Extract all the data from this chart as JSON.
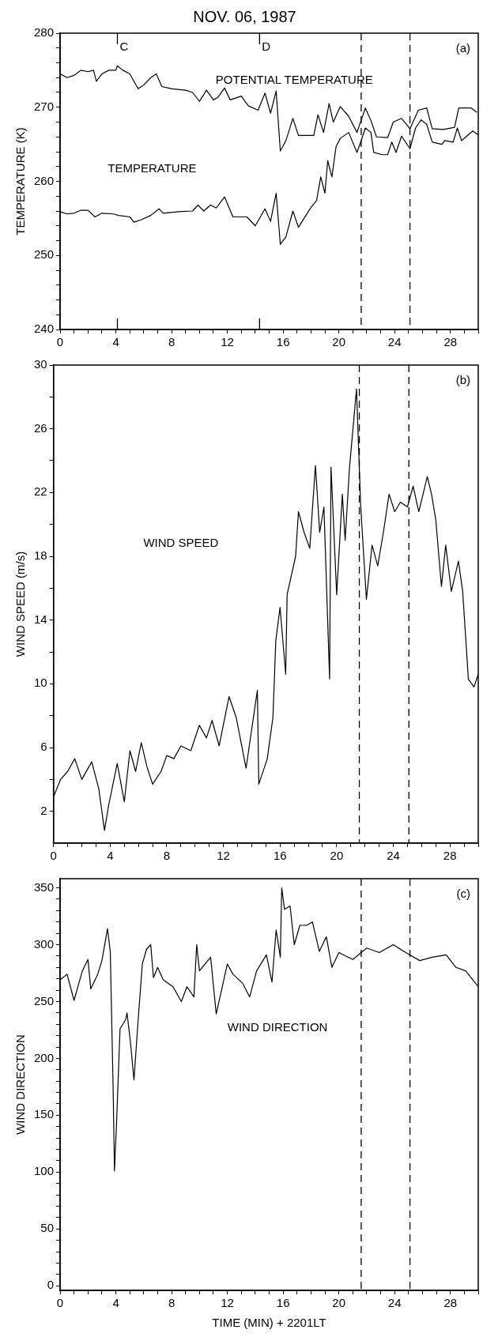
{
  "chart_data": [
    {
      "type": "line",
      "title": "NOV. 06, 1987",
      "ylabel": "TEMPERATURE (K)",
      "xlim": [
        0,
        30
      ],
      "ylim": [
        240,
        280
      ],
      "xticks": [
        0,
        {
          "value": 1,
          "label": null
        },
        {
          "value": 2,
          "label": null
        },
        {
          "value": 3,
          "label": null
        },
        4,
        {
          "value": 5,
          "label": null
        },
        {
          "value": 6,
          "label": null
        },
        {
          "value": 7,
          "label": null
        },
        8,
        {
          "value": 9,
          "label": null
        },
        {
          "value": 10,
          "label": null
        },
        {
          "value": 11,
          "label": null
        },
        12,
        {
          "value": 13,
          "label": null
        },
        {
          "value": 14,
          "label": null
        },
        {
          "value": 15,
          "label": null
        },
        16,
        {
          "value": 17,
          "label": null
        },
        {
          "value": 18,
          "label": null
        },
        {
          "value": 19,
          "label": null
        },
        20,
        {
          "value": 21,
          "label": null
        },
        {
          "value": 22,
          "label": null
        },
        {
          "value": 23,
          "label": null
        },
        24,
        {
          "value": 25,
          "label": null
        },
        {
          "value": 26,
          "label": null
        },
        {
          "value": 27,
          "label": null
        },
        28,
        {
          "value": 29,
          "label": null
        },
        {
          "value": 30,
          "label": null
        }
      ],
      "yticks": [
        240,
        {
          "value": 242,
          "label": null
        },
        {
          "value": 244,
          "label": null
        },
        {
          "value": 246,
          "label": null
        },
        {
          "value": 248,
          "label": null
        },
        250,
        {
          "value": 252,
          "label": null
        },
        {
          "value": 254,
          "label": null
        },
        {
          "value": 256,
          "label": null
        },
        {
          "value": 258,
          "label": null
        },
        260,
        {
          "value": 262,
          "label": null
        },
        {
          "value": 264,
          "label": null
        },
        {
          "value": 266,
          "label": null
        },
        {
          "value": 268,
          "label": null
        },
        270,
        {
          "value": 272,
          "label": null
        },
        {
          "value": 274,
          "label": null
        },
        {
          "value": 276,
          "label": null
        },
        {
          "value": 278,
          "label": null
        },
        280
      ],
      "series": [
        {
          "name": "POTENTIAL TEMPERATURE",
          "color": "#000000",
          "x": [
            0,
            0.5,
            1,
            1.5,
            2,
            2.4,
            2.6,
            3,
            3.5,
            4,
            4.1,
            4.5,
            5,
            5.3,
            5.6,
            6,
            6.5,
            6.9,
            7.3,
            8,
            9,
            9.5,
            10,
            10.5,
            11,
            11.3,
            11.8,
            12.2,
            13,
            13.5,
            14.2,
            14.7,
            15.1,
            15.5,
            15.8,
            16.2,
            16.7,
            17.1,
            18.2,
            18.5,
            18.9,
            19.3,
            19.6,
            20.1,
            20.7,
            21.3,
            21.9,
            22.3,
            22.7,
            23.5,
            23.9,
            24.5,
            25.1,
            25.7,
            26.3,
            26.7,
            27.5,
            28.3,
            28.6,
            29.5,
            29.9
          ],
          "values": [
            274.5,
            274.0,
            274.3,
            275.0,
            274.8,
            275.0,
            273.5,
            274.5,
            275.0,
            275.0,
            275.6,
            275.0,
            274.5,
            273.5,
            272.5,
            273.0,
            274.0,
            274.5,
            272.8,
            272.5,
            272.3,
            272.0,
            270.8,
            272.3,
            271.0,
            271.3,
            272.6,
            271.0,
            271.5,
            270.2,
            269.6,
            271.9,
            269.2,
            272.2,
            264.1,
            265.5,
            268.5,
            266.2,
            266.2,
            269.0,
            266.6,
            270.5,
            268.0,
            270.1,
            268.8,
            266.6,
            269.9,
            268.2,
            266.0,
            265.9,
            268.0,
            268.5,
            267.1,
            269.6,
            269.9,
            267.1,
            267.0,
            267.3,
            269.9,
            269.9,
            269.3
          ]
        },
        {
          "name": "TEMPERATURE",
          "color": "#000000",
          "x": [
            0,
            0.5,
            1,
            1.5,
            2,
            2.5,
            3,
            3.8,
            4.2,
            5,
            5.3,
            5.8,
            6.5,
            7.1,
            7.4,
            8.5,
            9.5,
            9.9,
            10.3,
            10.8,
            11.2,
            11.8,
            12.4,
            13.4,
            14.0,
            14.7,
            15.1,
            15.5,
            15.8,
            16.2,
            16.7,
            17.1,
            18.0,
            18.4,
            18.7,
            19.0,
            19.2,
            19.5,
            19.8,
            20.1,
            20.7,
            21.3,
            21.6,
            21.9,
            22.3,
            22.5,
            23.1,
            23.5,
            23.8,
            24.1,
            24.5,
            25.1,
            25.5,
            25.9,
            26.3,
            26.7,
            27.4,
            27.6,
            28.2,
            28.5,
            28.8,
            29.6,
            30
          ],
          "values": [
            255.9,
            255.6,
            255.7,
            256.1,
            256.1,
            255.2,
            255.7,
            255.6,
            255.4,
            255.2,
            254.5,
            254.8,
            255.4,
            256.3,
            255.7,
            255.9,
            256.0,
            256.8,
            256.0,
            256.8,
            256.4,
            257.9,
            255.2,
            255.2,
            254.0,
            256.3,
            254.6,
            258.4,
            251.5,
            252.5,
            256.0,
            253.8,
            256.5,
            257.4,
            260.6,
            258.4,
            262.8,
            260.6,
            264.7,
            265.8,
            266.6,
            263.9,
            265.5,
            267.2,
            266.6,
            263.9,
            263.6,
            263.6,
            265.3,
            263.9,
            266.1,
            264.4,
            267.2,
            268.3,
            267.7,
            265.3,
            265.0,
            265.5,
            265.3,
            267.2,
            265.5,
            266.8,
            266.3
          ]
        }
      ],
      "ref_lines": [
        {
          "axis": "x",
          "value": 21.6,
          "line_style": "dashed"
        },
        {
          "axis": "x",
          "value": 25.1,
          "line_style": "dashed"
        }
      ],
      "annotations": [
        "(a)",
        "C",
        "D"
      ],
      "marker": "none",
      "line_style": "solid"
    },
    {
      "type": "line",
      "ylabel": "WIND SPEED (m/s)",
      "xlim": [
        0,
        30
      ],
      "ylim": [
        0,
        30
      ],
      "xticks": [
        0,
        {
          "value": 1,
          "label": null
        },
        {
          "value": 2,
          "label": null
        },
        {
          "value": 3,
          "label": null
        },
        4,
        {
          "value": 5,
          "label": null
        },
        {
          "value": 6,
          "label": null
        },
        {
          "value": 7,
          "label": null
        },
        8,
        {
          "value": 9,
          "label": null
        },
        {
          "value": 10,
          "label": null
        },
        {
          "value": 11,
          "label": null
        },
        12,
        {
          "value": 13,
          "label": null
        },
        {
          "value": 14,
          "label": null
        },
        {
          "value": 15,
          "label": null
        },
        16,
        {
          "value": 17,
          "label": null
        },
        {
          "value": 18,
          "label": null
        },
        {
          "value": 19,
          "label": null
        },
        20,
        {
          "value": 21,
          "label": null
        },
        {
          "value": 22,
          "label": null
        },
        {
          "value": 23,
          "label": null
        },
        24,
        {
          "value": 25,
          "label": null
        },
        {
          "value": 26,
          "label": null
        },
        {
          "value": 27,
          "label": null
        },
        28,
        {
          "value": 29,
          "label": null
        },
        {
          "value": 30,
          "label": null
        }
      ],
      "yticks": [
        2,
        {
          "value": 4,
          "label": null
        },
        6,
        {
          "value": 8,
          "label": null
        },
        10,
        {
          "value": 12,
          "label": null
        },
        14,
        {
          "value": 16,
          "label": null
        },
        18,
        {
          "value": 20,
          "label": null
        },
        22,
        {
          "value": 24,
          "label": null
        },
        26,
        {
          "value": 28,
          "label": null
        },
        30
      ],
      "series": [
        {
          "name": "WIND SPEED",
          "color": "#000000",
          "x": [
            0,
            0.5,
            1,
            1.5,
            2,
            2.7,
            3.2,
            3.6,
            3.9,
            4.5,
            5,
            5.4,
            5.8,
            6.2,
            6.6,
            7,
            7.6,
            8,
            8.5,
            9,
            9.7,
            10.3,
            10.8,
            11.2,
            11.7,
            12.4,
            12.9,
            13.6,
            14.4,
            14.5,
            15.1,
            15.5,
            15.7,
            16.0,
            16.4,
            16.5,
            17.1,
            17.3,
            17.7,
            18.1,
            18.5,
            18.8,
            19.1,
            19.5,
            19.6,
            20.0,
            20.4,
            20.6,
            20.9,
            21.4,
            21.7,
            22.1,
            22.5,
            22.9,
            23.3,
            23.7,
            24.1,
            24.5,
            25.0,
            25.4,
            25.8,
            26.4,
            26.7,
            27.0,
            27.4,
            27.7,
            28.1,
            28.6,
            28.9,
            29.3,
            29.7,
            30
          ],
          "values": [
            2.9,
            4.0,
            4.5,
            5.3,
            4.0,
            5.1,
            3.4,
            0.8,
            2.4,
            5.0,
            2.6,
            5.8,
            4.5,
            6.3,
            4.8,
            3.7,
            4.5,
            5.5,
            5.3,
            6.1,
            5.8,
            7.4,
            6.6,
            7.7,
            6.1,
            9.2,
            7.9,
            4.7,
            9.6,
            3.7,
            5.3,
            7.9,
            12.7,
            14.8,
            10.6,
            15.6,
            18.0,
            20.8,
            19.5,
            18.5,
            23.7,
            19.5,
            21.1,
            10.3,
            23.6,
            15.6,
            21.9,
            19.0,
            23.5,
            28.5,
            21.1,
            15.3,
            18.7,
            17.4,
            19.5,
            21.9,
            20.8,
            21.4,
            21.1,
            22.4,
            20.8,
            23.0,
            21.9,
            20.3,
            16.1,
            18.7,
            15.8,
            17.7,
            15.8,
            10.3,
            9.8,
            10.6
          ]
        }
      ],
      "ref_lines": [
        {
          "axis": "x",
          "value": 21.6,
          "line_style": "dashed"
        },
        {
          "axis": "x",
          "value": 25.1,
          "line_style": "dashed"
        }
      ],
      "annotations": [
        "(b)"
      ],
      "marker": "none",
      "line_style": "solid"
    },
    {
      "type": "line",
      "ylabel": "WIND DIRECTION",
      "xlabel": "TIME (MIN) + 2201LT",
      "xlim": [
        0,
        30
      ],
      "ylim": [
        -4,
        358
      ],
      "xticks": [
        0,
        {
          "value": 1,
          "label": null
        },
        {
          "value": 2,
          "label": null
        },
        {
          "value": 3,
          "label": null
        },
        4,
        {
          "value": 5,
          "label": null
        },
        {
          "value": 6,
          "label": null
        },
        {
          "value": 7,
          "label": null
        },
        8,
        {
          "value": 9,
          "label": null
        },
        {
          "value": 10,
          "label": null
        },
        {
          "value": 11,
          "label": null
        },
        12,
        {
          "value": 13,
          "label": null
        },
        {
          "value": 14,
          "label": null
        },
        {
          "value": 15,
          "label": null
        },
        16,
        {
          "value": 17,
          "label": null
        },
        {
          "value": 18,
          "label": null
        },
        {
          "value": 19,
          "label": null
        },
        20,
        {
          "value": 21,
          "label": null
        },
        {
          "value": 22,
          "label": null
        },
        {
          "value": 23,
          "label": null
        },
        24,
        {
          "value": 25,
          "label": null
        },
        {
          "value": 26,
          "label": null
        },
        {
          "value": 27,
          "label": null
        },
        28,
        {
          "value": 29,
          "label": null
        },
        {
          "value": 30,
          "label": null
        }
      ],
      "yticks": [
        0,
        {
          "value": 10,
          "label": null
        },
        {
          "value": 20,
          "label": null
        },
        {
          "value": 30,
          "label": null
        },
        {
          "value": 40,
          "label": null
        },
        50,
        {
          "value": 60,
          "label": null
        },
        {
          "value": 70,
          "label": null
        },
        {
          "value": 80,
          "label": null
        },
        {
          "value": 90,
          "label": null
        },
        100,
        {
          "value": 110,
          "label": null
        },
        {
          "value": 120,
          "label": null
        },
        {
          "value": 130,
          "label": null
        },
        {
          "value": 140,
          "label": null
        },
        150,
        {
          "value": 160,
          "label": null
        },
        {
          "value": 170,
          "label": null
        },
        {
          "value": 180,
          "label": null
        },
        {
          "value": 190,
          "label": null
        },
        200,
        {
          "value": 210,
          "label": null
        },
        {
          "value": 220,
          "label": null
        },
        {
          "value": 230,
          "label": null
        },
        {
          "value": 240,
          "label": null
        },
        250,
        {
          "value": 260,
          "label": null
        },
        {
          "value": 270,
          "label": null
        },
        {
          "value": 280,
          "label": null
        },
        {
          "value": 290,
          "label": null
        },
        300,
        {
          "value": 310,
          "label": null
        },
        {
          "value": 320,
          "label": null
        },
        {
          "value": 330,
          "label": null
        },
        {
          "value": 340,
          "label": null
        },
        350
      ],
      "series": [
        {
          "name": "WIND DIRECTION",
          "color": "#000000",
          "x": [
            0,
            0.5,
            1.0,
            1.6,
            2.0,
            2.2,
            2.7,
            3.0,
            3.4,
            3.6,
            3.8,
            3.9,
            4.05,
            4.3,
            4.7,
            4.8,
            5.05,
            5.3,
            5.6,
            5.9,
            6.2,
            6.5,
            6.7,
            7.0,
            7.4,
            8.1,
            8.7,
            9.1,
            9.6,
            9.8,
            10.0,
            10.8,
            11.2,
            12.0,
            12.4,
            13.1,
            13.6,
            14.1,
            14.8,
            15.2,
            15.5,
            15.8,
            15.9,
            16.1,
            16.5,
            16.8,
            17.2,
            17.7,
            18.1,
            18.6,
            19.1,
            19.5,
            20.0,
            21.0,
            22.0,
            22.9,
            23.9,
            24.8,
            25.8,
            26.7,
            27.7,
            28.4,
            29.1,
            30.0
          ],
          "values": [
            269,
            274,
            251,
            277,
            287,
            261,
            274,
            286,
            314,
            294,
            177,
            101,
            143,
            226,
            234,
            240,
            214,
            181,
            234,
            283,
            296,
            300,
            271,
            280,
            269,
            263,
            250,
            263,
            254,
            300,
            277,
            289,
            239,
            283,
            274,
            266,
            254,
            277,
            291,
            267,
            313,
            289,
            350,
            331,
            334,
            300,
            317,
            317,
            320,
            294,
            307,
            280,
            293,
            287,
            297,
            293,
            300,
            293,
            286,
            289,
            291,
            280,
            277,
            263
          ]
        }
      ],
      "ref_lines": [
        {
          "axis": "x",
          "value": 21.6,
          "line_style": "dashed"
        },
        {
          "axis": "x",
          "value": 25.1,
          "line_style": "dashed"
        }
      ],
      "annotations": [
        "(c)"
      ],
      "marker": "none",
      "line_style": "solid"
    }
  ]
}
